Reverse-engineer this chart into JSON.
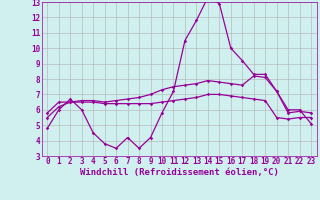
{
  "xlabel": "Windchill (Refroidissement éolien,°C)",
  "bg_color": "#cff0ee",
  "grid_color": "#b0b0b0",
  "line_color": "#990099",
  "xlim": [
    -0.5,
    23.5
  ],
  "ylim": [
    3,
    13
  ],
  "yticks": [
    3,
    4,
    5,
    6,
    7,
    8,
    9,
    10,
    11,
    12,
    13
  ],
  "xticks": [
    0,
    1,
    2,
    3,
    4,
    5,
    6,
    7,
    8,
    9,
    10,
    11,
    12,
    13,
    14,
    15,
    16,
    17,
    18,
    19,
    20,
    21,
    22,
    23
  ],
  "line1_x": [
    0,
    1,
    2,
    3,
    4,
    5,
    6,
    7,
    8,
    9,
    10,
    11,
    12,
    13,
    14,
    15,
    16,
    17,
    18,
    19,
    20,
    21,
    22,
    23
  ],
  "line1_y": [
    4.8,
    6.0,
    6.7,
    6.0,
    4.5,
    3.8,
    3.5,
    4.2,
    3.5,
    4.2,
    5.8,
    7.2,
    10.5,
    11.8,
    13.3,
    12.9,
    10.0,
    9.2,
    8.3,
    8.3,
    7.2,
    6.0,
    6.0,
    5.1
  ],
  "line2_x": [
    0,
    1,
    2,
    3,
    4,
    5,
    6,
    7,
    8,
    9,
    10,
    11,
    12,
    13,
    14,
    15,
    16,
    17,
    18,
    19,
    20,
    21,
    22,
    23
  ],
  "line2_y": [
    5.5,
    6.2,
    6.5,
    6.6,
    6.6,
    6.5,
    6.6,
    6.7,
    6.8,
    7.0,
    7.3,
    7.5,
    7.6,
    7.7,
    7.9,
    7.8,
    7.7,
    7.6,
    8.2,
    8.1,
    7.2,
    5.8,
    5.9,
    5.8
  ],
  "line3_x": [
    0,
    1,
    2,
    3,
    4,
    5,
    6,
    7,
    8,
    9,
    10,
    11,
    12,
    13,
    14,
    15,
    16,
    17,
    18,
    19,
    20,
    21,
    22,
    23
  ],
  "line3_y": [
    5.8,
    6.5,
    6.5,
    6.5,
    6.5,
    6.4,
    6.4,
    6.4,
    6.4,
    6.4,
    6.5,
    6.6,
    6.7,
    6.8,
    7.0,
    7.0,
    6.9,
    6.8,
    6.7,
    6.6,
    5.5,
    5.4,
    5.5,
    5.5
  ],
  "tick_fontsize": 5.5,
  "xlabel_fontsize": 6.5,
  "marker_size": 1.8,
  "linewidth": 0.9
}
